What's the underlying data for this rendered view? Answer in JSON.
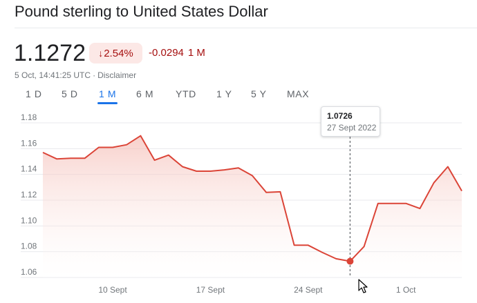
{
  "header": {
    "title": "Pound sterling to United States Dollar"
  },
  "quote": {
    "price": "1.1272",
    "change_arrow": "↓",
    "change_percent": "2.54%",
    "change_abs": "-0.0294",
    "change_period": "1 M",
    "timestamp": "5 Oct, 14:41:25 UTC",
    "separator": "·",
    "disclaimer": "Disclaimer"
  },
  "tabs": [
    "1 D",
    "5 D",
    "1 M",
    "6 M",
    "YTD",
    "1 Y",
    "5 Y",
    "MAX"
  ],
  "active_tab": "1 M",
  "tooltip": {
    "value": "1.0726",
    "date": "27 Sept 2022"
  },
  "colors": {
    "line": "#db4437",
    "fill_top": "#f4b8b0",
    "fill_bottom": "#ffffff",
    "grid": "#e8eaed",
    "negative_text": "#a50e0e",
    "negative_bg": "#fce8e6",
    "active_tab": "#1a73e8"
  },
  "chart_data": {
    "type": "area",
    "title": "",
    "xlabel": "",
    "ylabel": "",
    "ylim": [
      1.06,
      1.18
    ],
    "y_ticks": [
      "1.18",
      "1.16",
      "1.14",
      "1.12",
      "1.10",
      "1.08",
      "1.06"
    ],
    "x_ticks": [
      "10 Sept",
      "17 Sept",
      "24 Sept",
      "1 Oct"
    ],
    "grid": true,
    "highlight": {
      "x": "27 Sept",
      "y": 1.0726
    },
    "x": [
      "5 Sept",
      "6 Sept",
      "7 Sept",
      "8 Sept",
      "9 Sept",
      "10 Sept",
      "11 Sept",
      "12 Sept",
      "13 Sept",
      "14 Sept",
      "15 Sept",
      "16 Sept",
      "17 Sept",
      "18 Sept",
      "19 Sept",
      "20 Sept",
      "21 Sept",
      "22 Sept",
      "23 Sept",
      "24 Sept",
      "25 Sept",
      "26 Sept",
      "27 Sept",
      "28 Sept",
      "29 Sept",
      "30 Sept",
      "1 Oct",
      "2 Oct",
      "3 Oct",
      "4 Oct",
      "5 Oct"
    ],
    "series": [
      {
        "values": [
          1.157,
          1.152,
          1.1525,
          1.1525,
          1.161,
          1.161,
          1.163,
          1.17,
          1.151,
          1.155,
          1.146,
          1.1425,
          1.1425,
          1.1435,
          1.145,
          1.139,
          1.126,
          1.1265,
          1.085,
          1.085,
          1.0795,
          1.0745,
          1.0726,
          1.084,
          1.1175,
          1.1175,
          1.1175,
          1.1135,
          1.1335,
          1.146,
          1.1272
        ]
      }
    ]
  }
}
